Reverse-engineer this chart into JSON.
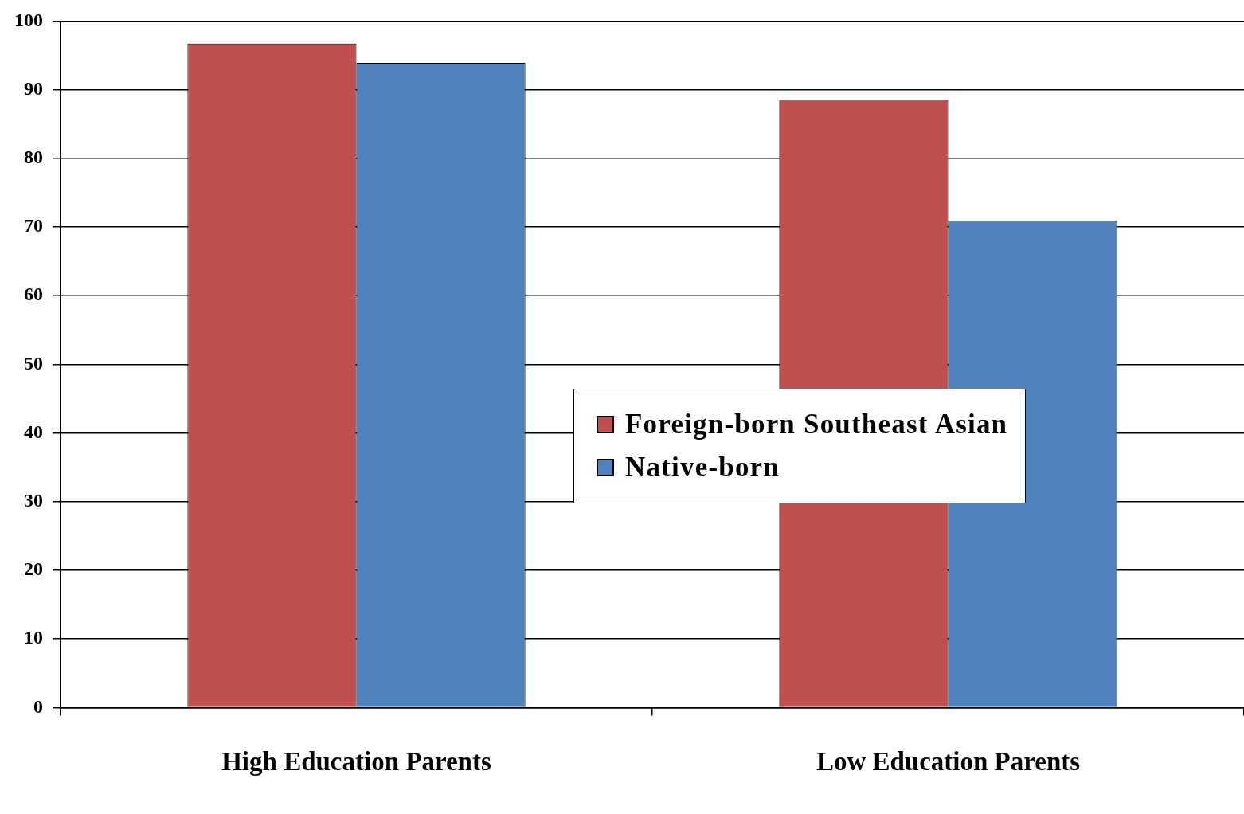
{
  "chart_data": {
    "type": "bar",
    "categories": [
      "High Education Parents",
      "Low Education Parents"
    ],
    "series": [
      {
        "name": "Foreign-born Southeast Asian",
        "color": "#c0504d",
        "values": [
          96.7,
          88.5
        ]
      },
      {
        "name": "Native-born",
        "color": "#4f81bd",
        "values": [
          93.9,
          70.9
        ]
      }
    ],
    "ylim": [
      0,
      100
    ],
    "yticks": [
      0,
      10,
      20,
      30,
      40,
      50,
      60,
      70,
      80,
      90,
      100
    ],
    "grid": "y",
    "legend": "center right"
  }
}
